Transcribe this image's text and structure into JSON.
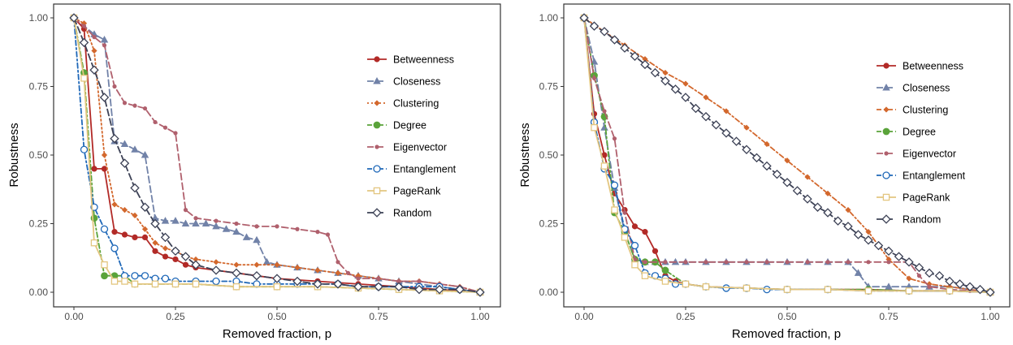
{
  "colors": {
    "Betweenness": "#b22a27",
    "Closeness": "#7182a8",
    "Clustering": "#d3682d",
    "Degree": "#5aa33a",
    "Eigenvector": "#b0606d",
    "Entanglement": "#1f68b8",
    "PageRank": "#e3c680",
    "Random": "#3d4256"
  },
  "chart_data": [
    {
      "type": "line",
      "xlabel": "Removed fraction, p",
      "ylabel": "Robustness",
      "xlim": [
        0,
        1
      ],
      "ylim": [
        0,
        1
      ],
      "xticks": [
        "0.00",
        "0.25",
        "0.50",
        "0.75",
        "1.00"
      ],
      "yticks": [
        "0.00",
        "0.25",
        "0.50",
        "0.75",
        "1.00"
      ],
      "grid": false,
      "legend_position": "right",
      "series": [
        {
          "name": "Betweenness",
          "marker": "circle",
          "dash": "solid",
          "x": [
            0,
            0.025,
            0.05,
            0.075,
            0.1,
            0.125,
            0.15,
            0.175,
            0.2,
            0.225,
            0.25,
            0.275,
            0.3,
            0.35,
            0.4,
            0.45,
            0.5,
            0.6,
            0.7,
            0.8,
            0.9,
            1.0
          ],
          "y": [
            1.0,
            0.96,
            0.45,
            0.45,
            0.22,
            0.21,
            0.2,
            0.2,
            0.15,
            0.13,
            0.12,
            0.1,
            0.09,
            0.08,
            0.07,
            0.06,
            0.05,
            0.04,
            0.03,
            0.02,
            0.01,
            0.0
          ]
        },
        {
          "name": "Closeness",
          "marker": "triangle",
          "dash": "longdash",
          "x": [
            0,
            0.05,
            0.075,
            0.1,
            0.125,
            0.15,
            0.175,
            0.2,
            0.225,
            0.25,
            0.275,
            0.3,
            0.325,
            0.35,
            0.375,
            0.4,
            0.425,
            0.45,
            0.475,
            0.5,
            0.55,
            0.6,
            0.65,
            0.7,
            0.75,
            0.8,
            0.85,
            0.9,
            0.95,
            1.0
          ],
          "y": [
            1.0,
            0.94,
            0.92,
            0.55,
            0.54,
            0.52,
            0.5,
            0.27,
            0.26,
            0.26,
            0.25,
            0.25,
            0.25,
            0.24,
            0.23,
            0.22,
            0.2,
            0.19,
            0.11,
            0.1,
            0.09,
            0.08,
            0.07,
            0.06,
            0.05,
            0.04,
            0.03,
            0.02,
            0.01,
            0.0
          ]
        },
        {
          "name": "Clustering",
          "marker": "diamond",
          "dash": "dotted",
          "x": [
            0,
            0.025,
            0.05,
            0.075,
            0.1,
            0.125,
            0.15,
            0.175,
            0.2,
            0.225,
            0.25,
            0.275,
            0.3,
            0.35,
            0.4,
            0.45,
            0.5,
            0.55,
            0.6,
            0.65,
            0.7,
            0.75,
            0.8,
            0.85,
            0.9,
            0.95,
            1.0
          ],
          "y": [
            1.0,
            0.98,
            0.88,
            0.5,
            0.32,
            0.3,
            0.28,
            0.23,
            0.18,
            0.16,
            0.15,
            0.13,
            0.12,
            0.11,
            0.1,
            0.1,
            0.1,
            0.09,
            0.08,
            0.07,
            0.06,
            0.05,
            0.04,
            0.04,
            0.03,
            0.02,
            0.0
          ]
        },
        {
          "name": "Degree",
          "marker": "filledcircle",
          "dash": "dotdash",
          "x": [
            0,
            0.025,
            0.05,
            0.075,
            0.1,
            0.125,
            0.15,
            0.2,
            0.25,
            0.3,
            0.4,
            0.5,
            0.6,
            0.7,
            0.8,
            0.9,
            1.0
          ],
          "y": [
            1.0,
            0.8,
            0.27,
            0.06,
            0.06,
            0.06,
            0.03,
            0.03,
            0.03,
            0.03,
            0.02,
            0.02,
            0.02,
            0.015,
            0.01,
            0.005,
            0.0
          ]
        },
        {
          "name": "Eigenvector",
          "marker": "smallcircle",
          "dash": "longdash",
          "x": [
            0,
            0.025,
            0.05,
            0.075,
            0.1,
            0.125,
            0.15,
            0.175,
            0.2,
            0.225,
            0.25,
            0.275,
            0.3,
            0.35,
            0.4,
            0.45,
            0.5,
            0.55,
            0.6,
            0.625,
            0.65,
            0.675,
            0.7,
            0.75,
            0.8,
            0.85,
            0.9,
            0.95,
            1.0
          ],
          "y": [
            1.0,
            0.97,
            0.93,
            0.9,
            0.75,
            0.69,
            0.68,
            0.67,
            0.62,
            0.6,
            0.58,
            0.3,
            0.27,
            0.26,
            0.25,
            0.24,
            0.24,
            0.23,
            0.22,
            0.21,
            0.11,
            0.07,
            0.05,
            0.05,
            0.04,
            0.04,
            0.03,
            0.02,
            0.0
          ]
        },
        {
          "name": "Entanglement",
          "marker": "opencircle",
          "dash": "dotdash",
          "x": [
            0,
            0.025,
            0.05,
            0.075,
            0.1,
            0.125,
            0.15,
            0.175,
            0.2,
            0.225,
            0.25,
            0.3,
            0.35,
            0.4,
            0.45,
            0.5,
            0.55,
            0.6,
            0.65,
            0.7,
            0.75,
            0.8,
            0.85,
            0.9,
            0.95,
            1.0
          ],
          "y": [
            1.0,
            0.52,
            0.31,
            0.23,
            0.16,
            0.06,
            0.06,
            0.06,
            0.05,
            0.05,
            0.04,
            0.04,
            0.04,
            0.04,
            0.03,
            0.03,
            0.03,
            0.03,
            0.03,
            0.02,
            0.02,
            0.02,
            0.02,
            0.02,
            0.01,
            0.0
          ]
        },
        {
          "name": "PageRank",
          "marker": "square",
          "dash": "solid",
          "x": [
            0,
            0.025,
            0.05,
            0.075,
            0.1,
            0.125,
            0.15,
            0.2,
            0.25,
            0.3,
            0.4,
            0.5,
            0.6,
            0.7,
            0.8,
            0.9,
            1.0
          ],
          "y": [
            1.0,
            0.78,
            0.18,
            0.1,
            0.04,
            0.04,
            0.03,
            0.03,
            0.03,
            0.03,
            0.02,
            0.02,
            0.02,
            0.015,
            0.01,
            0.005,
            0.0
          ]
        },
        {
          "name": "Random",
          "marker": "opendiamond",
          "dash": "longdash",
          "x": [
            0,
            0.025,
            0.05,
            0.075,
            0.1,
            0.125,
            0.15,
            0.175,
            0.2,
            0.225,
            0.25,
            0.275,
            0.3,
            0.35,
            0.4,
            0.45,
            0.5,
            0.55,
            0.6,
            0.65,
            0.7,
            0.75,
            0.8,
            0.85,
            0.9,
            0.95,
            1.0
          ],
          "y": [
            1.0,
            0.91,
            0.81,
            0.71,
            0.56,
            0.47,
            0.38,
            0.31,
            0.25,
            0.2,
            0.15,
            0.13,
            0.1,
            0.08,
            0.07,
            0.06,
            0.05,
            0.04,
            0.03,
            0.03,
            0.02,
            0.02,
            0.02,
            0.01,
            0.01,
            0.01,
            0.0
          ]
        }
      ]
    },
    {
      "type": "line",
      "xlabel": "Removed fraction, p",
      "ylabel": "Robustness",
      "xlim": [
        0,
        1
      ],
      "ylim": [
        0,
        1
      ],
      "xticks": [
        "0.00",
        "0.25",
        "0.50",
        "0.75",
        "1.00"
      ],
      "yticks": [
        "0.00",
        "0.25",
        "0.50",
        "0.75",
        "1.00"
      ],
      "grid": false,
      "legend_position": "right",
      "series": [
        {
          "name": "Betweenness",
          "marker": "circle",
          "dash": "solid",
          "x": [
            0,
            0.025,
            0.05,
            0.075,
            0.1,
            0.125,
            0.15,
            0.175,
            0.2,
            0.225,
            0.25,
            0.3,
            0.4,
            0.5,
            0.6,
            0.7,
            0.8,
            0.9,
            1.0
          ],
          "y": [
            1.0,
            0.65,
            0.5,
            0.36,
            0.3,
            0.24,
            0.22,
            0.15,
            0.06,
            0.04,
            0.03,
            0.02,
            0.015,
            0.01,
            0.01,
            0.01,
            0.005,
            0.005,
            0.0
          ]
        },
        {
          "name": "Closeness",
          "marker": "triangle",
          "dash": "longdash",
          "x": [
            0,
            0.025,
            0.05,
            0.075,
            0.1,
            0.125,
            0.15,
            0.175,
            0.2,
            0.225,
            0.25,
            0.3,
            0.35,
            0.4,
            0.45,
            0.5,
            0.55,
            0.6,
            0.65,
            0.675,
            0.7,
            0.75,
            0.8,
            0.85,
            0.9,
            0.95,
            1.0
          ],
          "y": [
            1.0,
            0.84,
            0.6,
            0.38,
            0.22,
            0.12,
            0.11,
            0.11,
            0.11,
            0.11,
            0.11,
            0.11,
            0.11,
            0.11,
            0.11,
            0.11,
            0.11,
            0.11,
            0.11,
            0.07,
            0.02,
            0.02,
            0.02,
            0.02,
            0.02,
            0.01,
            0.0
          ]
        },
        {
          "name": "Clustering",
          "marker": "diamond",
          "dash": "dotdash",
          "x": [
            0,
            0.05,
            0.1,
            0.15,
            0.2,
            0.25,
            0.3,
            0.35,
            0.4,
            0.45,
            0.5,
            0.55,
            0.6,
            0.65,
            0.7,
            0.75,
            0.8,
            0.85,
            0.9,
            0.95,
            1.0
          ],
          "y": [
            1.0,
            0.95,
            0.9,
            0.85,
            0.8,
            0.76,
            0.71,
            0.66,
            0.6,
            0.54,
            0.48,
            0.42,
            0.36,
            0.3,
            0.22,
            0.12,
            0.05,
            0.03,
            0.02,
            0.01,
            0.0
          ]
        },
        {
          "name": "Degree",
          "marker": "filledcircle",
          "dash": "dotdash",
          "x": [
            0,
            0.025,
            0.05,
            0.075,
            0.1,
            0.125,
            0.15,
            0.175,
            0.2,
            0.25,
            0.3,
            0.4,
            0.5,
            0.6,
            0.7,
            0.8,
            0.9,
            1.0
          ],
          "y": [
            1.0,
            0.79,
            0.64,
            0.29,
            0.22,
            0.12,
            0.11,
            0.11,
            0.08,
            0.03,
            0.02,
            0.015,
            0.01,
            0.01,
            0.01,
            0.005,
            0.005,
            0.0
          ]
        },
        {
          "name": "Eigenvector",
          "marker": "smallcircle",
          "dash": "longdash",
          "x": [
            0,
            0.025,
            0.05,
            0.075,
            0.1,
            0.125,
            0.15,
            0.2,
            0.25,
            0.3,
            0.35,
            0.4,
            0.45,
            0.5,
            0.55,
            0.6,
            0.65,
            0.7,
            0.75,
            0.8,
            0.825,
            0.85,
            0.9,
            0.95,
            1.0
          ],
          "y": [
            1.0,
            0.78,
            0.66,
            0.56,
            0.29,
            0.12,
            0.11,
            0.11,
            0.11,
            0.11,
            0.11,
            0.11,
            0.11,
            0.11,
            0.11,
            0.11,
            0.11,
            0.11,
            0.11,
            0.11,
            0.06,
            0.02,
            0.01,
            0.005,
            0.0
          ]
        },
        {
          "name": "Entanglement",
          "marker": "opencircle",
          "dash": "dotdash",
          "x": [
            0,
            0.025,
            0.05,
            0.075,
            0.1,
            0.125,
            0.15,
            0.175,
            0.2,
            0.225,
            0.25,
            0.3,
            0.35,
            0.4,
            0.45,
            0.5,
            0.6,
            0.7,
            0.8,
            0.9,
            1.0
          ],
          "y": [
            1.0,
            0.62,
            0.45,
            0.39,
            0.23,
            0.17,
            0.07,
            0.06,
            0.05,
            0.03,
            0.03,
            0.02,
            0.015,
            0.015,
            0.01,
            0.01,
            0.01,
            0.005,
            0.005,
            0.005,
            0.0
          ]
        },
        {
          "name": "PageRank",
          "marker": "square",
          "dash": "solid",
          "x": [
            0,
            0.025,
            0.05,
            0.075,
            0.1,
            0.125,
            0.15,
            0.2,
            0.25,
            0.3,
            0.4,
            0.5,
            0.6,
            0.7,
            0.8,
            0.9,
            1.0
          ],
          "y": [
            1.0,
            0.6,
            0.46,
            0.3,
            0.2,
            0.1,
            0.06,
            0.04,
            0.03,
            0.02,
            0.015,
            0.01,
            0.01,
            0.005,
            0.005,
            0.005,
            0.0
          ]
        },
        {
          "name": "Random",
          "marker": "opendiamond",
          "dash": "longdash",
          "x": [
            0,
            0.025,
            0.05,
            0.075,
            0.1,
            0.125,
            0.15,
            0.175,
            0.2,
            0.225,
            0.25,
            0.275,
            0.3,
            0.325,
            0.35,
            0.375,
            0.4,
            0.425,
            0.45,
            0.475,
            0.5,
            0.525,
            0.55,
            0.575,
            0.6,
            0.625,
            0.65,
            0.675,
            0.7,
            0.725,
            0.75,
            0.775,
            0.8,
            0.825,
            0.85,
            0.875,
            0.9,
            0.925,
            0.95,
            0.975,
            1.0
          ],
          "y": [
            1.0,
            0.97,
            0.95,
            0.92,
            0.89,
            0.86,
            0.83,
            0.8,
            0.77,
            0.74,
            0.71,
            0.67,
            0.64,
            0.61,
            0.58,
            0.55,
            0.52,
            0.49,
            0.46,
            0.43,
            0.4,
            0.37,
            0.34,
            0.31,
            0.29,
            0.26,
            0.24,
            0.21,
            0.19,
            0.17,
            0.15,
            0.13,
            0.11,
            0.09,
            0.07,
            0.06,
            0.04,
            0.03,
            0.02,
            0.01,
            0.0
          ]
        }
      ]
    }
  ]
}
